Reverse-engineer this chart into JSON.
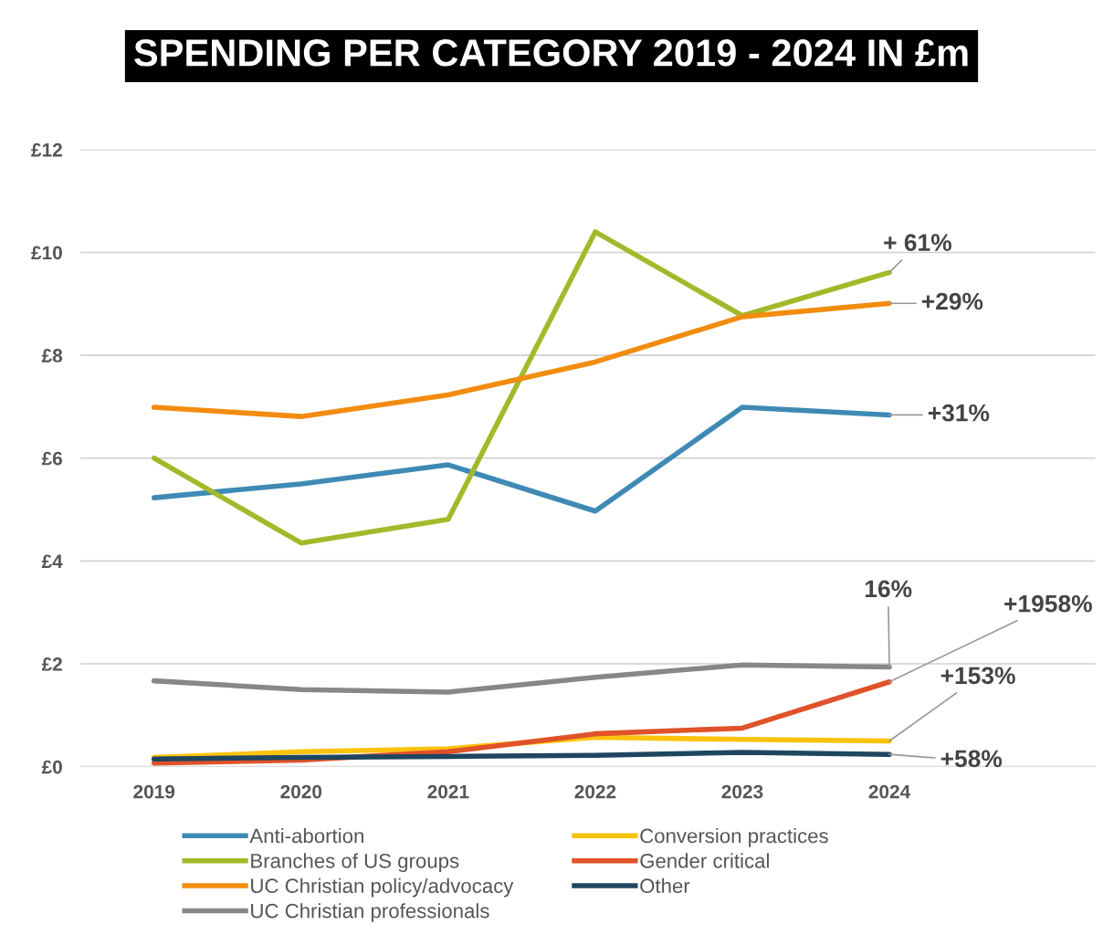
{
  "chart_data": {
    "type": "line",
    "title": "SPENDING PER CATEGORY 2019 - 2024 IN £m",
    "categories": [
      "2019",
      "2020",
      "2021",
      "2022",
      "2023",
      "2024"
    ],
    "series": [
      {
        "name": "Anti-abortion",
        "color": "#3e8ab5",
        "values": [
          5.23,
          5.5,
          5.87,
          4.97,
          6.99,
          6.84
        ]
      },
      {
        "name": "Branches of US groups",
        "color": "#a2b92a",
        "values": [
          6.0,
          4.35,
          4.81,
          10.4,
          8.77,
          9.61
        ]
      },
      {
        "name": "UC Christian policy/advocacy",
        "color": "#f28c0f",
        "values": [
          6.99,
          6.81,
          7.23,
          7.87,
          8.75,
          9.01
        ]
      },
      {
        "name": "UC Christian professionals",
        "color": "#878787",
        "values": [
          1.67,
          1.5,
          1.45,
          1.74,
          1.98,
          1.94
        ]
      },
      {
        "name": "Conversion practices",
        "color": "#fcc30d",
        "values": [
          0.18,
          0.29,
          0.35,
          0.57,
          0.53,
          0.5
        ]
      },
      {
        "name": "Gender critical",
        "color": "#e0522a",
        "values": [
          0.07,
          0.13,
          0.29,
          0.64,
          0.75,
          1.65
        ]
      },
      {
        "name": "Other",
        "color": "#1e4660",
        "values": [
          0.15,
          0.18,
          0.2,
          0.22,
          0.28,
          0.24
        ]
      }
    ],
    "ylim": [
      0,
      12
    ],
    "yticks": [
      {
        "value": 0,
        "label": "£0"
      },
      {
        "value": 2,
        "label": "£2"
      },
      {
        "value": 4,
        "label": "£4"
      },
      {
        "value": 6,
        "label": "£6"
      },
      {
        "value": 8,
        "label": "£8"
      },
      {
        "value": 10,
        "label": "£10"
      },
      {
        "value": 12,
        "label": "£12"
      }
    ],
    "grid": "y",
    "legend": "bottom",
    "marker": "none",
    "line_style": "solid",
    "annotations": [
      {
        "text": "+ 61%",
        "x": "2024",
        "y": 9.61
      },
      {
        "text": "+29%",
        "x": "2024",
        "y": 9.01
      },
      {
        "text": "+31%",
        "x": "2024",
        "y": 6.84
      },
      {
        "text": "16%",
        "x": "2024",
        "y": 1.94
      },
      {
        "text": "+1958%",
        "x": "2024",
        "y": 1.65
      },
      {
        "text": "+153%",
        "x": "2024",
        "y": 0.5
      },
      {
        "text": "+58%",
        "x": "2024",
        "y": 0.24
      }
    ]
  }
}
